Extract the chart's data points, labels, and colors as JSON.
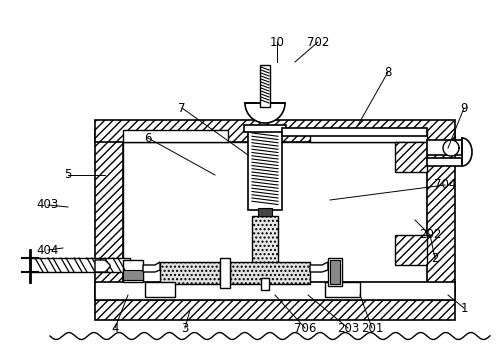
{
  "background_color": "#ffffff",
  "figsize": [
    5.02,
    3.51
  ],
  "dpi": 100,
  "labels": [
    [
      "1",
      464,
      308
    ],
    [
      "2",
      435,
      258
    ],
    [
      "3",
      185,
      328
    ],
    [
      "4",
      115,
      328
    ],
    [
      "5",
      68,
      175
    ],
    [
      "6",
      148,
      138
    ],
    [
      "7",
      182,
      108
    ],
    [
      "8",
      388,
      72
    ],
    [
      "9",
      464,
      108
    ],
    [
      "10",
      277,
      42
    ],
    [
      "202",
      430,
      235
    ],
    [
      "203",
      348,
      328
    ],
    [
      "201",
      372,
      328
    ],
    [
      "403",
      48,
      205
    ],
    [
      "404",
      48,
      250
    ],
    [
      "702",
      318,
      42
    ],
    [
      "704",
      445,
      185
    ],
    [
      "706",
      305,
      328
    ]
  ],
  "leader_lines": [
    [
      "1",
      464,
      308,
      448,
      295
    ],
    [
      "2",
      430,
      235,
      415,
      220
    ],
    [
      "3",
      185,
      328,
      190,
      310
    ],
    [
      "4",
      115,
      328,
      128,
      295
    ],
    [
      "5",
      68,
      175,
      105,
      175
    ],
    [
      "6",
      148,
      138,
      215,
      175
    ],
    [
      "7",
      182,
      108,
      248,
      155
    ],
    [
      "8",
      388,
      72,
      358,
      125
    ],
    [
      "9",
      464,
      108,
      448,
      148
    ],
    [
      "10",
      277,
      42,
      277,
      62
    ],
    [
      "202",
      430,
      235,
      415,
      235
    ],
    [
      "203",
      348,
      328,
      308,
      295
    ],
    [
      "201",
      372,
      328,
      360,
      295
    ],
    [
      "403",
      48,
      205,
      68,
      207
    ],
    [
      "404",
      48,
      250,
      63,
      248
    ],
    [
      "702",
      318,
      42,
      295,
      62
    ],
    [
      "704",
      445,
      185,
      330,
      200
    ],
    [
      "706",
      305,
      328,
      275,
      295
    ]
  ]
}
